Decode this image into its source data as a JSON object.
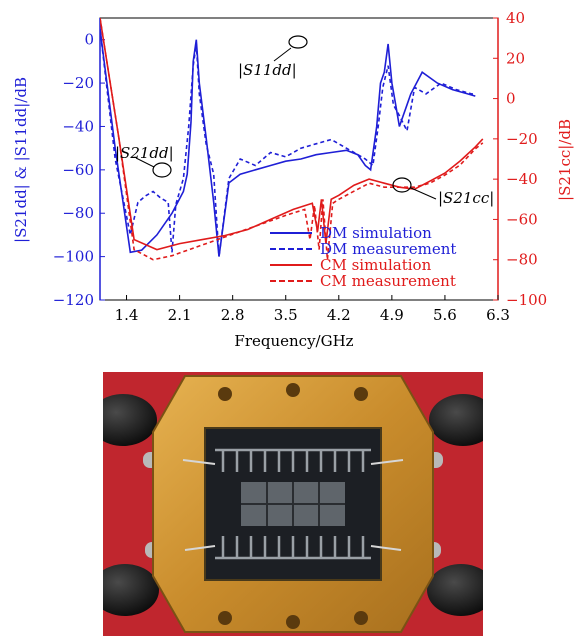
{
  "chart_data": {
    "type": "line",
    "xlabel": "Frequency/GHz",
    "ylabel_left": "|S21dd| & |S11dd|/dB",
    "ylabel_right": "|S21cc|/dB",
    "x_ticks": [
      "1.4",
      "2.1",
      "2.8",
      "3.5",
      "4.2",
      "4.9",
      "5.6",
      "6.3"
    ],
    "y_ticks_left": [
      "0",
      "−20",
      "−40",
      "−60",
      "−80",
      "−100",
      "−120"
    ],
    "y_ticks_right": [
      "40",
      "20",
      "0",
      "−20",
      "−40",
      "−60",
      "−80",
      "−100"
    ],
    "xlim": [
      1.05,
      6.3
    ],
    "ylim_left": [
      -120,
      10
    ],
    "ylim_right": [
      -100,
      40
    ],
    "grid": false,
    "legend_position": "bottom-right",
    "colors": {
      "dm": "#1f1fd6",
      "cm": "#e01b1b"
    },
    "annotations": [
      {
        "label": "|S11dd|",
        "sub": "11",
        "sup": "dd"
      },
      {
        "label": "|S21dd|",
        "sub": "21",
        "sup": "dd"
      },
      {
        "label": "|S21cc|",
        "sub": "21",
        "sup": "cc"
      }
    ],
    "series": [
      {
        "name": "DM simulation",
        "axis": "left",
        "style": "solid",
        "color": "#1f1fd6",
        "x": [
          1.05,
          1.25,
          1.45,
          1.6,
          1.8,
          2.0,
          2.15,
          2.2,
          2.25,
          2.28,
          2.32,
          2.36,
          2.45,
          2.55,
          2.62,
          2.75,
          2.9,
          3.1,
          3.3,
          3.5,
          3.7,
          3.9,
          4.1,
          4.3,
          4.45,
          4.55,
          4.62,
          4.7,
          4.75,
          4.8,
          4.85,
          4.9,
          4.95,
          5.0,
          5.05,
          5.1,
          5.15,
          5.3,
          5.5,
          5.7,
          5.9,
          6.0
        ],
        "y": [
          5,
          -50,
          -98,
          -97,
          -90,
          -80,
          -70,
          -62,
          -38,
          -10,
          0,
          -20,
          -45,
          -75,
          -100,
          -66,
          -62,
          -60,
          -58,
          -56,
          -55,
          -53,
          -52,
          -51,
          -53,
          -58,
          -60,
          -40,
          -20,
          -15,
          -2,
          -20,
          -30,
          -40,
          -35,
          -30,
          -25,
          -15,
          -20,
          -23,
          -25,
          -26
        ]
      },
      {
        "name": "DM measurement",
        "axis": "left",
        "style": "dashed",
        "color": "#1f1fd6",
        "x": [
          1.05,
          1.25,
          1.45,
          1.55,
          1.65,
          1.75,
          1.85,
          1.95,
          2.0,
          2.05,
          2.15,
          2.22,
          2.28,
          2.32,
          2.36,
          2.45,
          2.55,
          2.62,
          2.75,
          2.9,
          3.1,
          3.3,
          3.5,
          3.7,
          3.9,
          4.1,
          4.3,
          4.45,
          4.55,
          4.65,
          4.72,
          4.78,
          4.85,
          4.92,
          5.0,
          5.1,
          5.2,
          5.35,
          5.55,
          5.75,
          5.95,
          6.0
        ],
        "y": [
          5,
          -55,
          -90,
          -75,
          -72,
          -70,
          -73,
          -75,
          -98,
          -76,
          -64,
          -40,
          -12,
          -2,
          -25,
          -48,
          -62,
          -100,
          -64,
          -55,
          -58,
          -52,
          -54,
          -50,
          -48,
          -46,
          -50,
          -53,
          -55,
          -58,
          -40,
          -22,
          -12,
          -30,
          -35,
          -42,
          -22,
          -25,
          -20,
          -23,
          -25,
          -25
        ]
      },
      {
        "name": "CM simulation",
        "axis": "right",
        "style": "solid",
        "color": "#e01b1b",
        "x": [
          1.05,
          1.3,
          1.5,
          1.8,
          2.1,
          2.4,
          2.7,
          3.0,
          3.3,
          3.6,
          3.85,
          3.92,
          3.97,
          4.03,
          4.1,
          4.2,
          4.4,
          4.6,
          4.8,
          5.0,
          5.2,
          5.4,
          5.6,
          5.8,
          6.0,
          6.1
        ],
        "y": [
          40,
          -20,
          -70,
          -75,
          -72,
          -70,
          -68,
          -65,
          -60,
          -55,
          -52,
          -66,
          -50,
          -72,
          -50,
          -48,
          -43,
          -40,
          -42,
          -44,
          -45,
          -41,
          -37,
          -31,
          -24,
          -20
        ]
      },
      {
        "name": "CM measurement",
        "axis": "right",
        "style": "dashed",
        "color": "#e01b1b",
        "x": [
          1.05,
          1.3,
          1.5,
          1.75,
          2.0,
          2.3,
          2.6,
          2.9,
          3.2,
          3.5,
          3.75,
          3.82,
          3.88,
          3.94,
          3.99,
          4.05,
          4.12,
          4.2,
          4.4,
          4.6,
          4.8,
          5.0,
          5.2,
          5.4,
          5.6,
          5.8,
          6.0,
          6.1
        ],
        "y": [
          40,
          -20,
          -75,
          -80,
          -78,
          -74,
          -70,
          -66,
          -62,
          -58,
          -55,
          -70,
          -53,
          -75,
          -50,
          -80,
          -52,
          -50,
          -46,
          -42,
          -44,
          -44,
          -44,
          -42,
          -38,
          -33,
          -25,
          -22
        ]
      }
    ]
  }
}
